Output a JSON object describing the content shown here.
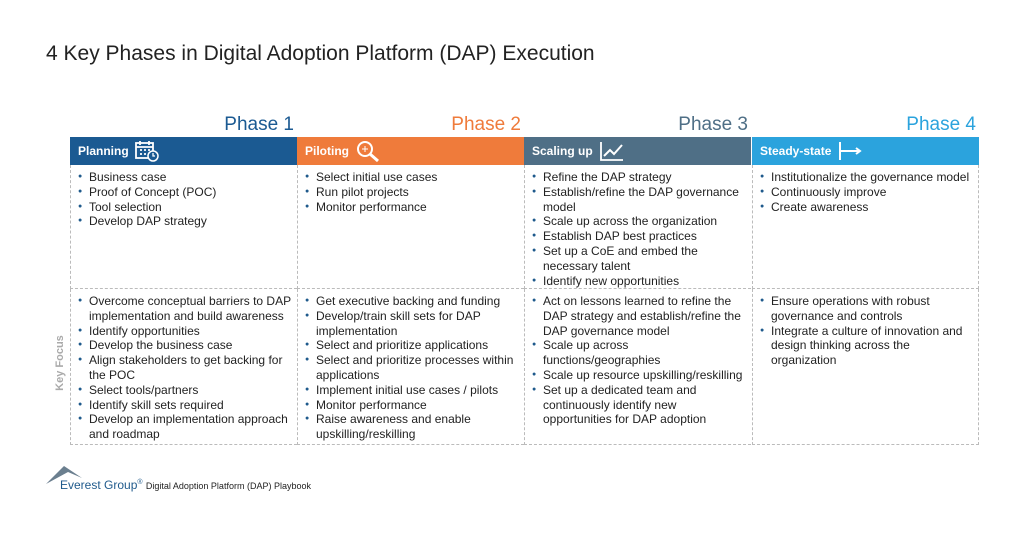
{
  "title": "4 Key Phases in Digital Adoption Platform (DAP) Execution",
  "row_label": "Key Focus",
  "phases": [
    {
      "label": "Phase 1",
      "name": "Planning",
      "activities": [
        "Business case",
        "Proof of Concept (POC)",
        "Tool selection",
        "Develop DAP strategy"
      ],
      "key_focus": [
        "Overcome conceptual barriers to DAP implementation and build awareness",
        "Identify opportunities",
        "Develop the business case",
        "Align stakeholders to get backing for the POC",
        "Select tools/partners",
        "Identify skill sets required",
        "Develop an implementation approach and roadmap"
      ]
    },
    {
      "label": "Phase 2",
      "name": "Piloting",
      "activities": [
        "Select initial use cases",
        "Run pilot projects",
        "Monitor performance"
      ],
      "key_focus": [
        "Get executive backing and funding",
        "Develop/train skill sets for DAP implementation",
        "Select and prioritize applications",
        "Select and prioritize processes within applications",
        "Implement initial use cases / pilots",
        "Monitor performance",
        "Raise awareness and enable upskilling/reskilling"
      ]
    },
    {
      "label": "Phase 3",
      "name": "Scaling up",
      "activities": [
        "Refine the DAP strategy",
        "Establish/refine the DAP governance model",
        "Scale up across the organization",
        "Establish DAP best practices",
        "Set up a CoE and embed the necessary talent",
        "Identify new opportunities"
      ],
      "key_focus": [
        "Act on lessons learned to refine the DAP strategy and establish/refine the DAP governance model",
        "Scale up across functions/geographies",
        "Scale up resource upskilling/reskilling",
        "Set up a dedicated team and continuously identify new opportunities for DAP adoption"
      ]
    },
    {
      "label": "Phase 4",
      "name": "Steady-state",
      "activities": [
        "Institutionalize the governance model",
        "Continuously improve",
        "Create awareness"
      ],
      "key_focus": [
        "Ensure operations with robust governance and controls",
        "Integrate a culture of innovation and design thinking across the organization"
      ]
    }
  ],
  "footer": {
    "brand": "Everest Group",
    "mark": "®",
    "publication": "Digital Adoption Platform (DAP) Playbook"
  }
}
